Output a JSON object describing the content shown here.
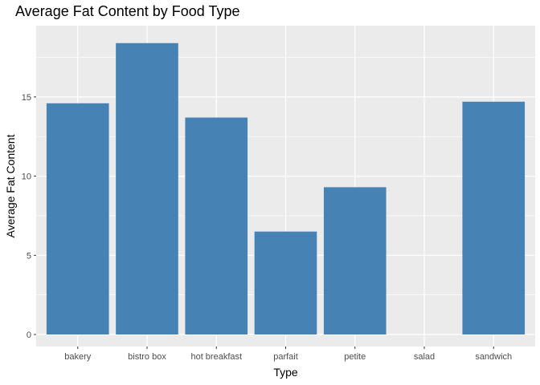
{
  "chart_data": {
    "type": "bar",
    "title": "Average Fat Content by Food Type",
    "xlabel": "Type",
    "ylabel": "Average Fat Content",
    "categories": [
      "bakery",
      "bistro box",
      "hot breakfast",
      "parfait",
      "petite",
      "salad",
      "sandwich"
    ],
    "values": [
      14.6,
      18.4,
      13.7,
      6.5,
      9.3,
      0,
      14.7
    ],
    "ylim": [
      0,
      19.3
    ],
    "yticks": [
      0,
      5,
      10,
      15
    ],
    "ytick_labels": [
      "0",
      "5",
      "10",
      "15"
    ],
    "grid": true,
    "bar_color": "#4682B4",
    "panel_background": "#EBEBEB",
    "grid_color": "#FFFFFF"
  }
}
